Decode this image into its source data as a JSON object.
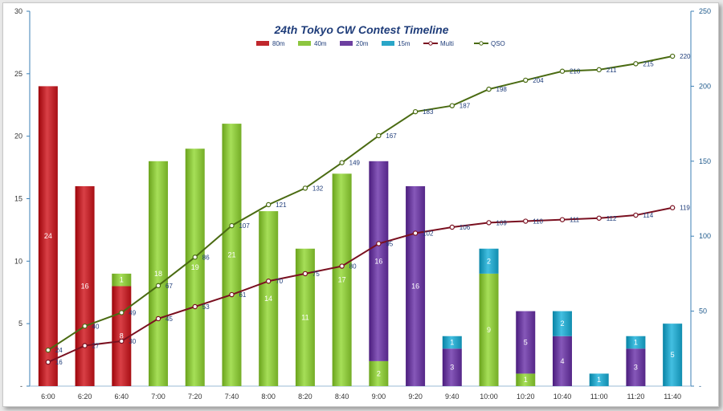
{
  "chart_data": {
    "type": "bar",
    "stacked": true,
    "title": "24th Tokyo  CW Contest Timeline",
    "categories": [
      "6:00",
      "6:20",
      "6:40",
      "7:00",
      "7:20",
      "7:40",
      "8:00",
      "8:20",
      "8:40",
      "9:00",
      "9:20",
      "9:40",
      "10:00",
      "10:20",
      "10:40",
      "11:00",
      "11:20",
      "11:40"
    ],
    "ylim": [
      0,
      30
    ],
    "yticks": [
      0,
      5,
      10,
      15,
      20,
      25,
      30
    ],
    "y2lim": [
      0,
      250
    ],
    "y2ticks": [
      0,
      50,
      100,
      150,
      200,
      250
    ],
    "bottom_tick_label": "-",
    "grid": false,
    "legend_position": "top",
    "series": [
      {
        "name": "80m",
        "kind": "bar",
        "color": "#c0272d",
        "values": [
          24,
          16,
          8,
          0,
          0,
          0,
          0,
          0,
          0,
          0,
          0,
          0,
          0,
          0,
          0,
          0,
          0,
          0
        ]
      },
      {
        "name": "40m",
        "kind": "bar",
        "color": "#8dc63f",
        "values": [
          0,
          0,
          1,
          18,
          19,
          21,
          14,
          11,
          17,
          2,
          0,
          0,
          9,
          1,
          0,
          0,
          0,
          0
        ]
      },
      {
        "name": "20m",
        "kind": "bar",
        "color": "#6d3fa0",
        "values": [
          0,
          0,
          0,
          0,
          0,
          0,
          0,
          0,
          0,
          16,
          16,
          3,
          0,
          5,
          4,
          0,
          3,
          0
        ]
      },
      {
        "name": "15m",
        "kind": "bar",
        "color": "#2aa6c8",
        "values": [
          0,
          0,
          0,
          0,
          0,
          0,
          0,
          0,
          0,
          0,
          0,
          1,
          2,
          0,
          2,
          1,
          1,
          5
        ]
      },
      {
        "name": "Multi",
        "kind": "line",
        "axis": "right",
        "color": "#7a1020",
        "values": [
          16,
          27,
          30,
          45,
          53,
          61,
          70,
          75,
          80,
          95,
          102,
          106,
          109,
          110,
          111,
          112,
          114,
          119
        ]
      },
      {
        "name": "QSO",
        "kind": "line",
        "axis": "right",
        "color": "#4a6b12",
        "values": [
          24,
          40,
          49,
          67,
          86,
          107,
          121,
          132,
          149,
          167,
          183,
          187,
          198,
          204,
          210,
          211,
          215,
          220
        ]
      }
    ]
  }
}
